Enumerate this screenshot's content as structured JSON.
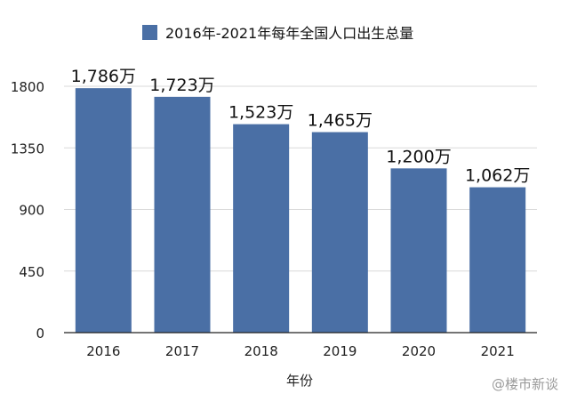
{
  "chart_data": {
    "type": "bar",
    "categories": [
      "2016",
      "2017",
      "2018",
      "2019",
      "2020",
      "2021"
    ],
    "series": [
      {
        "name": "2016年-2021年每年全国人口出生总量",
        "values": [
          1786,
          1723,
          1523,
          1465,
          1200,
          1062
        ]
      }
    ],
    "data_labels": [
      "1,786万",
      "1,723万",
      "1,523万",
      "1,465万",
      "1,200万",
      "1,062万"
    ],
    "xlabel": "年份",
    "ylabel": "",
    "ylim": [
      0,
      1800
    ],
    "yticks": [
      0,
      450,
      900,
      1350,
      1800
    ],
    "grid": true,
    "legend": "top-center",
    "bar_color": "#4a6fa5",
    "grid_color": "#d9d9d9"
  },
  "watermark": "@楼市新谈"
}
